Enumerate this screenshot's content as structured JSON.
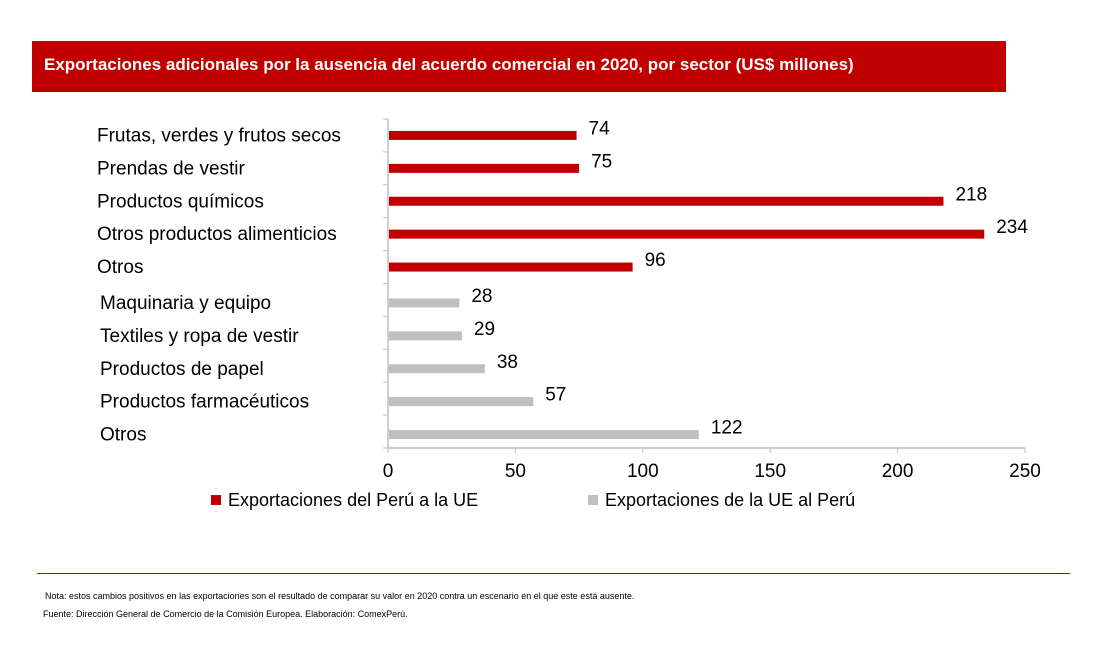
{
  "header": {
    "title": "Exportaciones adicionales por la ausencia del acuerdo comercial en 2020, por sector (US$ millones)"
  },
  "colors": {
    "accent": "#c00000",
    "series_peru": "#c00000",
    "series_ue": "#bfbfbf",
    "axis": "#bfbfbf"
  },
  "chart_data": {
    "type": "bar",
    "orientation": "horizontal",
    "title": "Exportaciones adicionales por la ausencia del acuerdo comercial en 2020, por sector (US$ millones)",
    "xlabel": "",
    "ylabel": "",
    "xlim": [
      0,
      250
    ],
    "xticks": [
      0,
      50,
      100,
      150,
      200,
      250
    ],
    "grid": false,
    "legend_position": "bottom",
    "series": [
      {
        "name": "Exportaciones del Perú a la UE",
        "color": "#c00000",
        "categories": [
          "Frutas, verdes y frutos secos",
          "Prendas de vestir",
          "Productos químicos",
          "Otros productos alimenticios",
          "Otros"
        ],
        "values": [
          74,
          75,
          218,
          234,
          96
        ]
      },
      {
        "name": "Exportaciones de la UE al Perú",
        "color": "#bfbfbf",
        "categories": [
          "Maquinaria y equipo",
          "Textiles y ropa de vestir",
          "Productos de papel",
          "Productos farmacéuticos",
          "Otros"
        ],
        "values": [
          28,
          29,
          38,
          57,
          122
        ]
      }
    ]
  },
  "footer": {
    "note": "Nota: estos cambios positivos en las exportaciones son el resultado de comparar su valor en 2020 contra un escenario en el que este está ausente.",
    "source": "Fuente: Dirección General de Comercio de la Comisión Europea. Elaboración: ComexPerú."
  }
}
